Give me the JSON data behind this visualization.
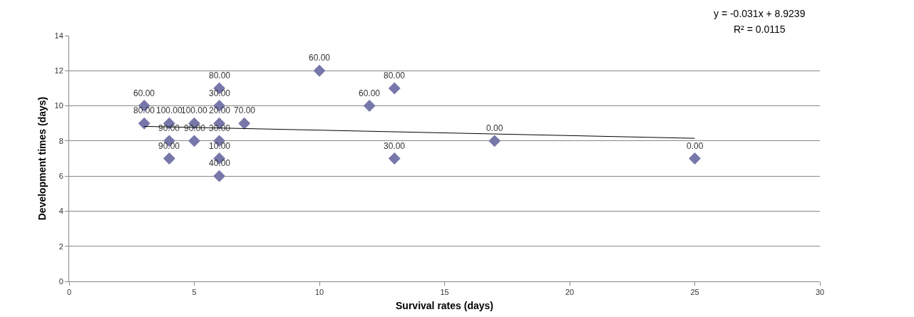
{
  "chart_data": {
    "type": "scatter",
    "xlabel": "Survival rates (days)",
    "ylabel": "Development times (days)",
    "series": [
      {
        "color": "#7777aa",
        "marker": "diamond",
        "x": [
          3,
          3,
          4,
          4,
          4,
          5,
          5,
          6,
          6,
          6,
          6,
          6,
          6,
          7,
          10,
          12,
          13,
          13,
          17,
          25
        ],
        "values": [
          10,
          9,
          9,
          8,
          7,
          9,
          8,
          11,
          10,
          9,
          8,
          7,
          6,
          9,
          12,
          10,
          11,
          7,
          8,
          7
        ]
      },
      {
        "type": "line",
        "color": "#000000",
        "marker": "none",
        "x": [
          3,
          25
        ],
        "values": [
          8.83,
          8.15
        ]
      }
    ],
    "annotations": [
      "y = -0.031x + 8.9239",
      "R² = 0.0115",
      {
        "text": "60.00",
        "x": 3,
        "y": 10
      },
      {
        "text": "80.00",
        "x": 3,
        "y": 9
      },
      {
        "text": "100.00",
        "x": 4,
        "y": 9
      },
      {
        "text": "90.00",
        "x": 4,
        "y": 8
      },
      {
        "text": "90.00",
        "x": 4,
        "y": 7
      },
      {
        "text": "100.00",
        "x": 5,
        "y": 9
      },
      {
        "text": "90.00",
        "x": 5,
        "y": 8
      },
      {
        "text": "80.00",
        "x": 6,
        "y": 11
      },
      {
        "text": "30.00",
        "x": 6,
        "y": 10
      },
      {
        "text": "20.00",
        "x": 6,
        "y": 9
      },
      {
        "text": "30.00",
        "x": 6,
        "y": 8
      },
      {
        "text": "10.00",
        "x": 6,
        "y": 7
      },
      {
        "text": "40.00",
        "x": 6,
        "y": 6
      },
      {
        "text": "70.00",
        "x": 7,
        "y": 9
      },
      {
        "text": "60.00",
        "x": 10,
        "y": 12
      },
      {
        "text": "60.00",
        "x": 12,
        "y": 10
      },
      {
        "text": "80.00",
        "x": 13,
        "y": 11
      },
      {
        "text": "30.00",
        "x": 13,
        "y": 7
      },
      {
        "text": "0.00",
        "x": 17,
        "y": 8
      },
      {
        "text": "0.00",
        "x": 25,
        "y": 7
      }
    ],
    "xlim": [
      0,
      30
    ],
    "xticks": [
      0,
      5,
      10,
      15,
      20,
      25,
      30
    ],
    "ylim": [
      0,
      14
    ],
    "yticks": [
      0,
      2,
      4,
      6,
      8,
      10,
      12,
      14
    ],
    "grid": "y"
  }
}
